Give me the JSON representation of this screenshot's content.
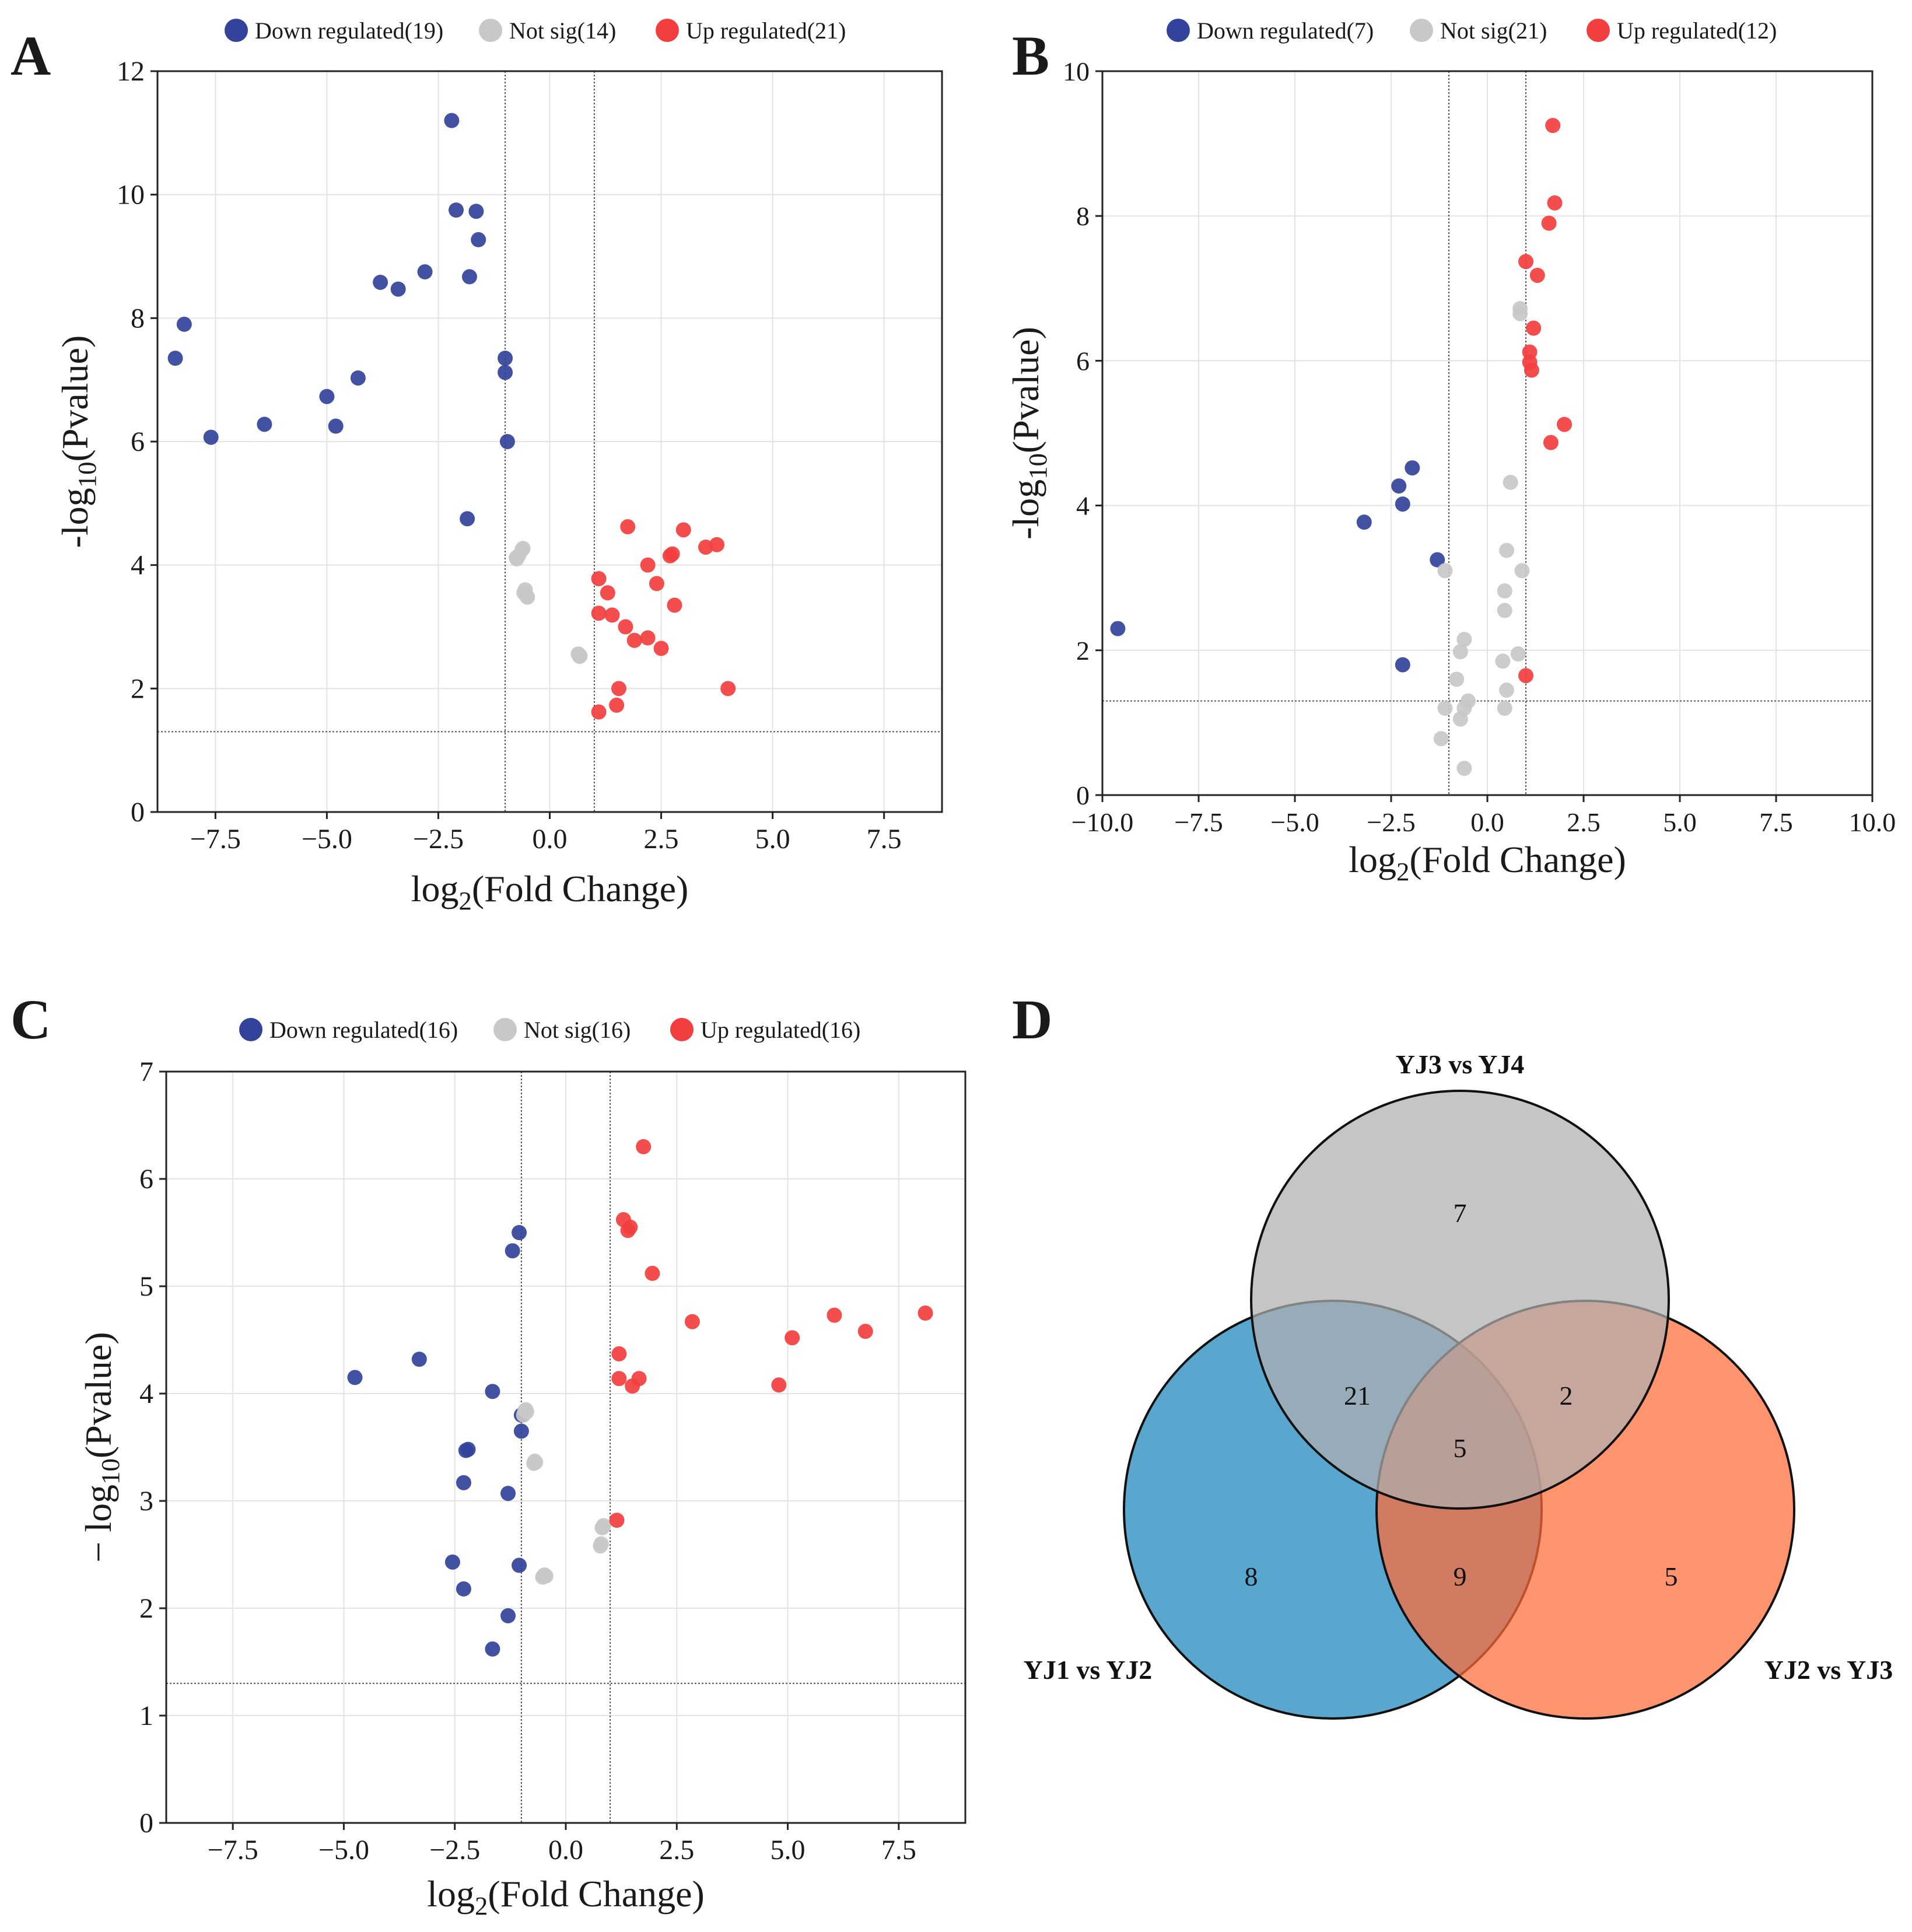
{
  "chart_data": [
    {
      "panel": "A",
      "type": "scatter",
      "xlabel": "log2(Fold Change)",
      "ylabel": "-log10(Pvalue)",
      "xlim": [
        -8.8,
        8.8
      ],
      "ylim": [
        0,
        12
      ],
      "xticks": [
        -7.5,
        -5.0,
        -2.5,
        0.0,
        2.5,
        5.0,
        7.5
      ],
      "xtick_labels": [
        "−7.5",
        "−5.0",
        "−2.5",
        "0.0",
        "2.5",
        "5.0",
        "7.5"
      ],
      "yticks": [
        0,
        2,
        4,
        6,
        8,
        10,
        12
      ],
      "ytick_labels": [
        "0",
        "2",
        "4",
        "6",
        "8",
        "10",
        "12"
      ],
      "fc_lines": [
        -1,
        1
      ],
      "p_line": 1.3,
      "legend_labels": [
        "Down regulated(19)",
        "Not sig(14)",
        "Up regulated(21)"
      ],
      "series": [
        {
          "name": "Down regulated",
          "color": "#33429a",
          "points": [
            [
              -8.4,
              7.35
            ],
            [
              -8.2,
              7.9
            ],
            [
              -7.6,
              6.07
            ],
            [
              -6.4,
              6.28
            ],
            [
              -5,
              6.73
            ],
            [
              -4.8,
              6.25
            ],
            [
              -4.3,
              7.03
            ],
            [
              -3.8,
              8.58
            ],
            [
              -3.4,
              8.47
            ],
            [
              -2.8,
              8.75
            ],
            [
              -2.2,
              11.2
            ],
            [
              -2.1,
              9.75
            ],
            [
              -1.8,
              8.67
            ],
            [
              -1.65,
              9.73
            ],
            [
              -1.6,
              9.27
            ],
            [
              -1.85,
              4.75
            ],
            [
              -1.0,
              7.35
            ],
            [
              -1.0,
              7.12
            ],
            [
              -0.95,
              6.0
            ]
          ]
        },
        {
          "name": "Not sig",
          "color": "#c8c8c8",
          "points": [
            [
              -0.75,
              4.12
            ],
            [
              -0.6,
              4.27
            ],
            [
              -0.55,
              3.6
            ],
            [
              -0.5,
              3.48
            ],
            [
              0.65,
              2.55
            ],
            [
              0.68,
              2.53
            ],
            [
              -0.7,
              4.15
            ],
            [
              -0.58,
              3.55
            ],
            [
              -0.52,
              3.5
            ],
            [
              0.66,
              2.54
            ],
            [
              -0.74,
              4.1
            ],
            [
              -0.62,
              4.25
            ],
            [
              0.64,
              2.56
            ],
            [
              0.67,
              2.52
            ]
          ]
        },
        {
          "name": "Up regulated",
          "color": "#f23e3e",
          "points": [
            [
              1.1,
              3.78
            ],
            [
              1.1,
              3.22
            ],
            [
              1.1,
              1.62
            ],
            [
              1.3,
              3.55
            ],
            [
              1.4,
              3.19
            ],
            [
              1.5,
              1.73
            ],
            [
              1.55,
              2.0
            ],
            [
              1.7,
              3.0
            ],
            [
              1.75,
              4.62
            ],
            [
              1.9,
              2.78
            ],
            [
              2.2,
              4.0
            ],
            [
              2.2,
              2.82
            ],
            [
              2.4,
              3.7
            ],
            [
              2.5,
              2.65
            ],
            [
              2.7,
              4.15
            ],
            [
              2.75,
              4.18
            ],
            [
              2.8,
              3.35
            ],
            [
              3.0,
              4.57
            ],
            [
              3.5,
              4.29
            ],
            [
              3.75,
              4.33
            ],
            [
              4.0,
              2.0
            ]
          ]
        }
      ]
    },
    {
      "panel": "B",
      "type": "scatter",
      "xlabel": "log2(Fold Change)",
      "ylabel": "-log10(Pvalue)",
      "xlim": [
        -10,
        10
      ],
      "ylim": [
        0,
        10
      ],
      "xticks": [
        -10,
        -7.5,
        -5.0,
        -2.5,
        0.0,
        2.5,
        5.0,
        7.5,
        10.0
      ],
      "xtick_labels": [
        "−10.0",
        "−7.5",
        "−5.0",
        "−2.5",
        "0.0",
        "2.5",
        "5.0",
        "7.5",
        "10.0"
      ],
      "yticks": [
        0,
        2,
        4,
        6,
        8,
        10
      ],
      "ytick_labels": [
        "0",
        "2",
        "4",
        "6",
        "8",
        "10"
      ],
      "fc_lines": [
        -1,
        1
      ],
      "p_line": 1.3,
      "legend_labels": [
        "Down regulated(7)",
        "Not sig(21)",
        "Up regulated(12)"
      ],
      "series": [
        {
          "name": "Down regulated",
          "color": "#33429a",
          "points": [
            [
              -9.6,
              2.3
            ],
            [
              -3.2,
              3.77
            ],
            [
              -2.3,
              4.27
            ],
            [
              -2.2,
              4.02
            ],
            [
              -1.95,
              4.52
            ],
            [
              -1.3,
              3.25
            ],
            [
              -2.2,
              1.8
            ]
          ]
        },
        {
          "name": "Not sig",
          "color": "#c8c8c8",
          "points": [
            [
              -1.1,
              3.1
            ],
            [
              -0.6,
              2.15
            ],
            [
              -0.7,
              1.98
            ],
            [
              -0.8,
              1.6
            ],
            [
              -1.1,
              1.2
            ],
            [
              -0.7,
              1.05
            ],
            [
              -0.6,
              1.2
            ],
            [
              -0.5,
              1.3
            ],
            [
              -1.2,
              0.78
            ],
            [
              -0.6,
              0.37
            ],
            [
              0.4,
              1.85
            ],
            [
              0.45,
              1.2
            ],
            [
              0.5,
              1.45
            ],
            [
              0.45,
              2.55
            ],
            [
              0.45,
              2.82
            ],
            [
              0.5,
              3.38
            ],
            [
              0.6,
              4.32
            ],
            [
              0.8,
              1.95
            ],
            [
              0.85,
              6.72
            ],
            [
              0.85,
              6.65
            ],
            [
              0.9,
              3.1
            ]
          ]
        },
        {
          "name": "Up regulated",
          "color": "#f23e3e",
          "points": [
            [
              1.7,
              9.25
            ],
            [
              1.75,
              8.18
            ],
            [
              1.6,
              7.9
            ],
            [
              1.0,
              7.37
            ],
            [
              1.3,
              7.18
            ],
            [
              1.2,
              6.45
            ],
            [
              1.1,
              6.12
            ],
            [
              1.1,
              5.98
            ],
            [
              1.15,
              5.87
            ],
            [
              2.0,
              5.12
            ],
            [
              1.65,
              4.87
            ],
            [
              1.0,
              1.65
            ]
          ]
        }
      ]
    },
    {
      "panel": "C",
      "type": "scatter",
      "xlabel": "log2(Fold Change)",
      "ylabel": "− log10(Pvalue)",
      "xlim": [
        -9,
        9
      ],
      "ylim": [
        0,
        7
      ],
      "xticks": [
        -7.5,
        -5.0,
        -2.5,
        0.0,
        2.5,
        5.0,
        7.5
      ],
      "xtick_labels": [
        "−7.5",
        "−5.0",
        "−2.5",
        "0.0",
        "2.5",
        "5.0",
        "7.5"
      ],
      "yticks": [
        0,
        1,
        2,
        3,
        4,
        5,
        6,
        7
      ],
      "ytick_labels": [
        "0",
        "1",
        "2",
        "3",
        "4",
        "5",
        "6",
        "7"
      ],
      "fc_lines": [
        -1,
        1
      ],
      "p_line": 1.3,
      "legend_labels": [
        "Down regulated(16)",
        "Not sig(16)",
        "Up regulated(16)"
      ],
      "series": [
        {
          "name": "Down regulated",
          "color": "#33429a",
          "points": [
            [
              -4.75,
              4.15
            ],
            [
              -3.3,
              4.32
            ],
            [
              -1.65,
              4.02
            ],
            [
              -2.25,
              3.47
            ],
            [
              -2.2,
              3.48
            ],
            [
              -2.3,
              3.17
            ],
            [
              -1.3,
              3.07
            ],
            [
              -2.55,
              2.43
            ],
            [
              -2.3,
              2.18
            ],
            [
              -1.3,
              1.93
            ],
            [
              -1.65,
              1.62
            ],
            [
              -1.05,
              5.5
            ],
            [
              -1.2,
              5.33
            ],
            [
              -1.0,
              3.8
            ],
            [
              -1.0,
              3.65
            ],
            [
              -1.05,
              2.4
            ]
          ]
        },
        {
          "name": "Not sig",
          "color": "#c8c8c8",
          "points": [
            [
              -0.9,
              3.85
            ],
            [
              -0.95,
              3.8
            ],
            [
              -0.7,
              3.37
            ],
            [
              -0.5,
              2.3
            ],
            [
              -0.45,
              2.3
            ],
            [
              0.85,
              2.77
            ],
            [
              0.8,
              2.6
            ],
            [
              -0.88,
              3.83
            ],
            [
              -0.72,
              3.35
            ],
            [
              -0.48,
              2.31
            ],
            [
              0.82,
              2.75
            ],
            [
              0.78,
              2.58
            ],
            [
              -0.92,
              3.84
            ],
            [
              -0.52,
              2.29
            ],
            [
              0.84,
              2.76
            ],
            [
              -0.68,
              3.36
            ]
          ]
        },
        {
          "name": "Up regulated",
          "color": "#f23e3e",
          "points": [
            [
              1.75,
              6.3
            ],
            [
              1.3,
              5.62
            ],
            [
              1.4,
              5.52
            ],
            [
              1.45,
              5.55
            ],
            [
              1.95,
              5.12
            ],
            [
              2.85,
              4.67
            ],
            [
              5.1,
              4.52
            ],
            [
              6.05,
              4.73
            ],
            [
              6.75,
              4.58
            ],
            [
              8.1,
              4.75
            ],
            [
              1.2,
              4.37
            ],
            [
              1.2,
              4.14
            ],
            [
              1.65,
              4.14
            ],
            [
              1.5,
              4.07
            ],
            [
              4.8,
              4.08
            ],
            [
              1.15,
              2.82
            ]
          ]
        }
      ]
    }
  ],
  "panels": {
    "a": "A",
    "b": "B",
    "c": "C",
    "d": "D"
  },
  "venn": {
    "sets": [
      {
        "name": "YJ3 vs YJ4",
        "color": "#aeaeae"
      },
      {
        "name": "YJ1 vs YJ2",
        "color": "#2a8ec2"
      },
      {
        "name": "YJ2 vs YJ3",
        "color": "#ff6b38"
      }
    ],
    "regions": {
      "only_yj34": "7",
      "only_yj12": "8",
      "only_yj23": "5",
      "yj34_yj12": "21",
      "yj34_yj23": "2",
      "yj12_yj23": "9",
      "all_three": "5"
    }
  }
}
